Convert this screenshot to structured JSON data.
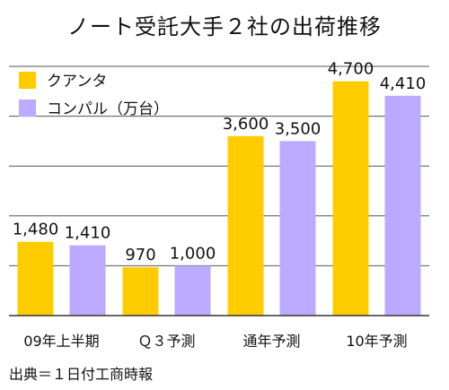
{
  "chart_data": {
    "type": "bar",
    "title": "ノート受託大手２社の出荷推移",
    "categories": [
      "09年上半期",
      "Ｑ３予測",
      "通年予測",
      "10年予測"
    ],
    "series": [
      {
        "name": "クアンタ",
        "color": "#ffcc00",
        "values": [
          1480,
          970,
          3600,
          4700
        ],
        "labels": [
          "1,480",
          "970",
          "3,600",
          "4,700"
        ]
      },
      {
        "name": "コンパル（万台）",
        "color": "#bbaaff",
        "values": [
          1410,
          1000,
          3500,
          4410
        ],
        "labels": [
          "1,410",
          "1,000",
          "3,500",
          "4,410"
        ]
      }
    ],
    "ylim": [
      0,
      5000
    ],
    "grid": true,
    "legend_position": "top-left",
    "source": "出典＝１日付工商時報"
  }
}
